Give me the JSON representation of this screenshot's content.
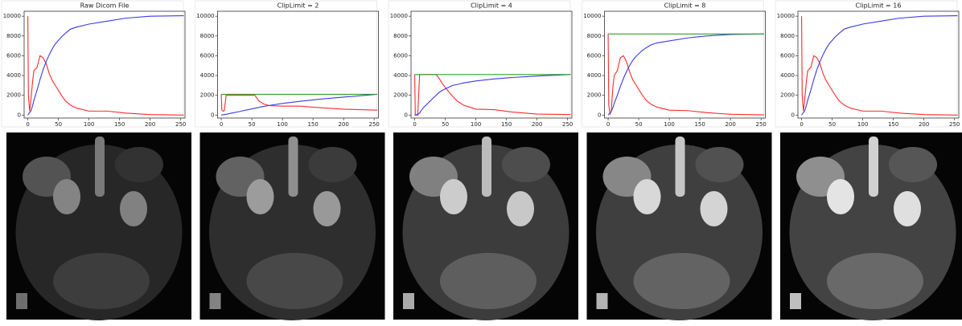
{
  "chart_data": [
    {
      "type": "line",
      "title": "Raw Dicom File",
      "x": [
        0,
        1,
        3,
        5,
        8,
        10,
        15,
        20,
        25,
        30,
        35,
        40,
        45,
        55,
        62,
        70,
        80,
        100,
        130,
        160,
        200,
        255
      ],
      "series": [
        {
          "color": "#ff2a2a",
          "values": [
            10000,
            2000,
            400,
            1500,
            3500,
            4500,
            4800,
            6000,
            5800,
            5200,
            4200,
            3500,
            3000,
            2000,
            1400,
            1000,
            700,
            400,
            400,
            200,
            50,
            0
          ]
        },
        {
          "color": "#3a3ae8",
          "values": [
            0,
            100,
            250,
            400,
            1000,
            1500,
            2500,
            3600,
            4600,
            5400,
            6100,
            6700,
            7200,
            7900,
            8300,
            8700,
            8900,
            9200,
            9500,
            9800,
            10000,
            10050
          ]
        }
      ],
      "xlim": [
        -6,
        257
      ],
      "ylim": [
        -300,
        10500
      ],
      "xticks": [
        0,
        50,
        100,
        150,
        200,
        250
      ],
      "yticks": [
        0,
        2000,
        4000,
        6000,
        8000,
        10000
      ]
    },
    {
      "type": "line",
      "title": "ClipLimit = 2",
      "x": [
        0,
        1,
        3,
        5,
        8,
        10,
        15,
        20,
        25,
        30,
        35,
        40,
        45,
        55,
        62,
        70,
        80,
        100,
        130,
        160,
        200,
        255
      ],
      "series": [
        {
          "color": "#ff2a2a",
          "values": [
            2100,
            500,
            400,
            450,
            2000,
            2000,
            2000,
            2000,
            2000,
            2000,
            2000,
            2000,
            2000,
            2000,
            1400,
            1100,
            950,
            900,
            900,
            750,
            600,
            500
          ]
        },
        {
          "color": "#3a3ae8",
          "values": [
            0,
            10,
            30,
            50,
            80,
            100,
            170,
            230,
            300,
            360,
            430,
            500,
            560,
            690,
            780,
            880,
            990,
            1180,
            1400,
            1600,
            1820,
            2100
          ]
        },
        {
          "color": "#2ca02c",
          "values": [
            2100,
            2100,
            2100,
            2100,
            2100,
            2100,
            2100,
            2100,
            2100,
            2100,
            2100,
            2100,
            2100,
            2100,
            2100,
            2100,
            2100,
            2100,
            2100,
            2100,
            2100,
            2100
          ]
        }
      ],
      "xlim": [
        -6,
        257
      ],
      "ylim": [
        -300,
        10500
      ],
      "xticks": [
        0,
        50,
        100,
        150,
        200,
        250
      ],
      "yticks": [
        0,
        2000,
        4000,
        6000,
        8000,
        10000
      ]
    },
    {
      "type": "line",
      "title": "ClipLimit = 4",
      "x": [
        0,
        1,
        3,
        5,
        8,
        10,
        15,
        20,
        25,
        30,
        35,
        40,
        45,
        55,
        62,
        70,
        80,
        100,
        130,
        160,
        200,
        255
      ],
      "series": [
        {
          "color": "#ff2a2a",
          "values": [
            4100,
            0,
            0,
            0,
            4100,
            4100,
            4100,
            4100,
            4100,
            4100,
            4100,
            3700,
            3200,
            2400,
            1900,
            1400,
            1000,
            600,
            550,
            300,
            100,
            50
          ]
        },
        {
          "color": "#3a3ae8",
          "values": [
            0,
            20,
            40,
            60,
            200,
            400,
            800,
            1100,
            1400,
            1700,
            2000,
            2300,
            2500,
            2800,
            3000,
            3100,
            3250,
            3450,
            3650,
            3800,
            3950,
            4100
          ]
        },
        {
          "color": "#2ca02c",
          "values": [
            4100,
            4100,
            4100,
            4100,
            4100,
            4100,
            4100,
            4100,
            4100,
            4100,
            4100,
            4100,
            4100,
            4100,
            4100,
            4100,
            4100,
            4100,
            4100,
            4100,
            4100,
            4100
          ]
        }
      ],
      "xlim": [
        -6,
        257
      ],
      "ylim": [
        -300,
        10500
      ],
      "xticks": [
        0,
        50,
        100,
        150,
        200,
        250
      ],
      "yticks": [
        0,
        2000,
        4000,
        6000,
        8000,
        10000
      ]
    },
    {
      "type": "line",
      "title": "ClipLimit = 8",
      "x": [
        0,
        1,
        3,
        5,
        8,
        10,
        15,
        20,
        25,
        30,
        35,
        40,
        45,
        55,
        62,
        70,
        80,
        100,
        130,
        160,
        200,
        255
      ],
      "series": [
        {
          "color": "#ff2a2a",
          "values": [
            8200,
            1000,
            100,
            400,
            3000,
            4000,
            4500,
            5800,
            6000,
            5400,
            4400,
            3600,
            3100,
            2100,
            1500,
            1100,
            800,
            500,
            450,
            250,
            80,
            20
          ]
        },
        {
          "color": "#3a3ae8",
          "values": [
            0,
            80,
            200,
            350,
            800,
            1200,
            2000,
            2900,
            3700,
            4400,
            5000,
            5500,
            5900,
            6500,
            6800,
            7100,
            7300,
            7500,
            7800,
            8000,
            8150,
            8200
          ]
        },
        {
          "color": "#2ca02c",
          "values": [
            8200,
            8200,
            8200,
            8200,
            8200,
            8200,
            8200,
            8200,
            8200,
            8200,
            8200,
            8200,
            8200,
            8200,
            8200,
            8200,
            8200,
            8200,
            8200,
            8200,
            8200,
            8200
          ]
        }
      ],
      "xlim": [
        -6,
        257
      ],
      "ylim": [
        -300,
        10500
      ],
      "xticks": [
        0,
        50,
        100,
        150,
        200,
        250
      ],
      "yticks": [
        0,
        2000,
        4000,
        6000,
        8000,
        10000
      ]
    },
    {
      "type": "line",
      "title": "ClipLimit = 16",
      "x": [
        0,
        1,
        3,
        5,
        8,
        10,
        15,
        20,
        25,
        30,
        35,
        40,
        45,
        55,
        62,
        70,
        80,
        100,
        130,
        160,
        200,
        255
      ],
      "series": [
        {
          "color": "#ff2a2a",
          "values": [
            10000,
            2000,
            400,
            1500,
            3500,
            4500,
            4800,
            6000,
            5800,
            5200,
            4200,
            3500,
            3000,
            2000,
            1400,
            1000,
            700,
            400,
            400,
            200,
            50,
            0
          ]
        },
        {
          "color": "#3a3ae8",
          "values": [
            0,
            100,
            250,
            400,
            1000,
            1500,
            2500,
            3600,
            4600,
            5400,
            6100,
            6700,
            7200,
            7900,
            8300,
            8700,
            8900,
            9200,
            9500,
            9800,
            10000,
            10050
          ]
        }
      ],
      "xlim": [
        -6,
        257
      ],
      "ylim": [
        -300,
        10500
      ],
      "xticks": [
        0,
        50,
        100,
        150,
        200,
        250
      ],
      "yticks": [
        0,
        2000,
        4000,
        6000,
        8000,
        10000
      ]
    }
  ]
}
